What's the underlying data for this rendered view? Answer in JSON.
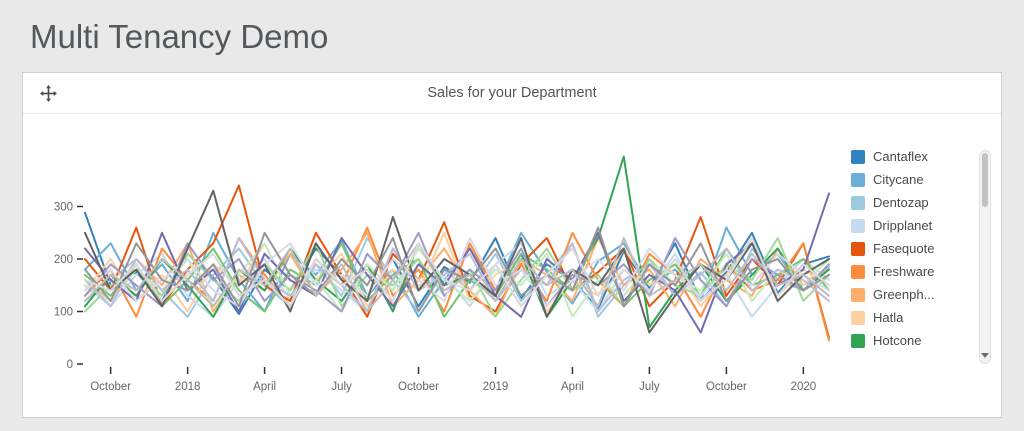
{
  "page": {
    "title": "Multi Tenancy Demo",
    "background": "#e9e9e9"
  },
  "panel": {
    "title": "Sales for your Department",
    "icons": {
      "drag_handle": "move-icon",
      "legend_scroll": "chevron-down-icon"
    }
  },
  "legend": {
    "items": [
      {
        "label": "Cantaflex",
        "color": "#3182bd"
      },
      {
        "label": "Citycane",
        "color": "#6baed6"
      },
      {
        "label": "Dentozap",
        "color": "#9ecae1"
      },
      {
        "label": "Dripplanet",
        "color": "#c6dbef"
      },
      {
        "label": "Fasequote",
        "color": "#e6550d"
      },
      {
        "label": "Freshware",
        "color": "#fd8d3c"
      },
      {
        "label": "Greenph...",
        "color": "#fdae6b"
      },
      {
        "label": "Hatla",
        "color": "#fdd0a2"
      },
      {
        "label": "Hotcone",
        "color": "#31a354"
      }
    ]
  },
  "chart_data": {
    "type": "line",
    "title": "Sales for your Department",
    "xlabel": "",
    "ylabel": "",
    "n_points": 30,
    "ylim": [
      0,
      400
    ],
    "y_ticks": [
      0,
      100,
      200,
      300
    ],
    "x_ticks": [
      {
        "label": "October",
        "index": 1
      },
      {
        "label": "2018",
        "index": 4
      },
      {
        "label": "April",
        "index": 7
      },
      {
        "label": "July",
        "index": 10
      },
      {
        "label": "October",
        "index": 13
      },
      {
        "label": "2019",
        "index": 16
      },
      {
        "label": "April",
        "index": 19
      },
      {
        "label": "July",
        "index": 22
      },
      {
        "label": "October",
        "index": 25
      },
      {
        "label": "2020",
        "index": 28
      }
    ],
    "series": [
      {
        "name": "Cantaflex",
        "color": "#3182bd",
        "values": [
          288,
          150,
          175,
          120,
          210,
          165,
          95,
          180,
          140,
          220,
          170,
          130,
          200,
          110,
          185,
          155,
          240,
          125,
          190,
          160,
          105,
          215,
          145,
          230,
          120,
          175,
          250,
          135,
          190,
          205
        ]
      },
      {
        "name": "Citycane",
        "color": "#6baed6",
        "values": [
          180,
          230,
          140,
          190,
          120,
          250,
          160,
          100,
          210,
          170,
          235,
          130,
          180,
          90,
          160,
          220,
          140,
          250,
          175,
          115,
          195,
          230,
          150,
          180,
          120,
          260,
          170,
          210,
          140,
          190
        ]
      },
      {
        "name": "Dentozap",
        "color": "#9ecae1",
        "values": [
          120,
          160,
          200,
          140,
          90,
          170,
          220,
          150,
          110,
          190,
          130,
          240,
          160,
          100,
          180,
          140,
          210,
          120,
          170,
          230,
          90,
          150,
          200,
          130,
          175,
          110,
          220,
          160,
          140,
          185
        ]
      },
      {
        "name": "Dripplanet",
        "color": "#c6dbef",
        "values": [
          150,
          110,
          170,
          210,
          130,
          90,
          160,
          200,
          120,
          180,
          140,
          100,
          220,
          150,
          170,
          110,
          190,
          230,
          130,
          160,
          100,
          180,
          140,
          210,
          120,
          170,
          90,
          150,
          200,
          160
        ]
      },
      {
        "name": "Fasequote",
        "color": "#e6550d",
        "values": [
          200,
          140,
          260,
          110,
          180,
          230,
          340,
          150,
          120,
          250,
          170,
          90,
          210,
          160,
          270,
          130,
          100,
          190,
          240,
          140,
          175,
          220,
          110,
          160,
          280,
          130,
          200,
          150,
          230,
          50
        ]
      },
      {
        "name": "Freshware",
        "color": "#fd8d3c",
        "values": [
          130,
          180,
          90,
          220,
          160,
          120,
          240,
          170,
          110,
          200,
          150,
          260,
          130,
          180,
          100,
          230,
          140,
          190,
          120,
          250,
          160,
          110,
          210,
          170,
          90,
          190,
          140,
          160,
          230,
          45
        ]
      },
      {
        "name": "Greenph...",
        "color": "#fdae6b",
        "values": [
          160,
          120,
          200,
          150,
          230,
          100,
          170,
          140,
          210,
          130,
          180,
          250,
          110,
          160,
          220,
          140,
          90,
          200,
          170,
          120,
          240,
          150,
          180,
          110,
          200,
          160,
          130,
          220,
          150,
          180
        ]
      },
      {
        "name": "Hatla",
        "color": "#fdd0a2",
        "values": [
          140,
          200,
          120,
          170,
          100,
          190,
          150,
          230,
          130,
          160,
          210,
          110,
          180,
          140,
          250,
          120,
          170,
          200,
          100,
          160,
          130,
          220,
          150,
          190,
          110,
          170,
          240,
          130,
          180,
          150
        ]
      },
      {
        "name": "Hotcone",
        "color": "#31a354",
        "values": [
          110,
          170,
          130,
          200,
          150,
          90,
          180,
          140,
          220,
          160,
          120,
          190,
          100,
          230,
          150,
          170,
          130,
          210,
          90,
          160,
          240,
          395,
          70,
          140,
          190,
          120,
          170,
          220,
          140,
          180
        ]
      },
      {
        "name": "",
        "color": "#74c476",
        "values": [
          170,
          130,
          190,
          110,
          160,
          220,
          140,
          100,
          180,
          150,
          230,
          120,
          170,
          200,
          90,
          160,
          130,
          210,
          180,
          140,
          250,
          110,
          160,
          190,
          130,
          220,
          150,
          170,
          200,
          140
        ]
      },
      {
        "name": "",
        "color": "#a1d99b",
        "values": [
          100,
          150,
          180,
          130,
          210,
          160,
          120,
          190,
          140,
          230,
          110,
          170,
          150,
          200,
          130,
          180,
          90,
          160,
          220,
          140,
          170,
          110,
          200,
          150,
          130,
          190,
          160,
          240,
          120,
          170
        ]
      },
      {
        "name": "",
        "color": "#c7e9c0",
        "values": [
          150,
          120,
          180,
          140,
          200,
          110,
          170,
          230,
          130,
          160,
          100,
          190,
          140,
          220,
          160,
          120,
          180,
          150,
          210,
          90,
          160,
          130,
          190,
          170,
          140,
          210,
          120,
          180,
          150,
          200
        ]
      },
      {
        "name": "",
        "color": "#756bb1",
        "values": [
          220,
          160,
          120,
          250,
          140,
          180,
          100,
          210,
          160,
          130,
          240,
          170,
          110,
          190,
          150,
          220,
          130,
          90,
          200,
          160,
          250,
          120,
          170,
          140,
          60,
          190,
          230,
          150,
          180,
          325
        ]
      },
      {
        "name": "",
        "color": "#9e9ac8",
        "values": [
          130,
          190,
          150,
          110,
          230,
          160,
          200,
          120,
          170,
          140,
          100,
          210,
          160,
          250,
          130,
          180,
          140,
          220,
          110,
          170,
          150,
          190,
          130,
          240,
          160,
          110,
          200,
          170,
          140,
          190
        ]
      },
      {
        "name": "",
        "color": "#bcbddc",
        "values": [
          160,
          110,
          200,
          140,
          180,
          120,
          240,
          160,
          130,
          190,
          150,
          100,
          220,
          140,
          170,
          210,
          120,
          180,
          150,
          230,
          100,
          160,
          190,
          130,
          170,
          220,
          140,
          180,
          160,
          120
        ]
      },
      {
        "name": "",
        "color": "#dadaeb",
        "values": [
          140,
          180,
          120,
          160,
          200,
          140,
          110,
          190,
          230,
          150,
          170,
          130,
          200,
          160,
          120,
          240,
          150,
          180,
          110,
          160,
          200,
          140,
          220,
          170,
          130,
          180,
          150,
          210,
          170,
          140
        ]
      },
      {
        "name": "",
        "color": "#636363",
        "values": [
          250,
          140,
          180,
          110,
          220,
          330,
          150,
          190,
          100,
          230,
          160,
          120,
          280,
          140,
          200,
          170,
          130,
          240,
          90,
          180,
          150,
          220,
          60,
          130,
          190,
          160,
          230,
          120,
          170,
          200
        ]
      },
      {
        "name": "",
        "color": "#969696",
        "values": [
          180,
          120,
          230,
          160,
          140,
          190,
          110,
          250,
          170,
          130,
          200,
          150,
          240,
          100,
          180,
          160,
          220,
          130,
          170,
          140,
          260,
          110,
          190,
          150,
          230,
          120,
          180,
          200,
          140,
          170
        ]
      },
      {
        "name": "",
        "color": "#bdbdbd",
        "values": [
          120,
          170,
          140,
          200,
          160,
          110,
          180,
          150,
          220,
          130,
          190,
          100,
          160,
          230,
          140,
          170,
          120,
          200,
          150,
          180,
          110,
          240,
          130,
          160,
          190,
          140,
          210,
          150,
          170,
          130
        ]
      },
      {
        "name": "",
        "color": "#d9d9d9",
        "values": [
          160,
          140,
          190,
          120,
          170,
          210,
          130,
          160,
          110,
          200,
          150,
          180,
          120,
          230,
          160,
          140,
          190,
          110,
          170,
          220,
          130,
          180,
          140,
          200,
          120,
          160,
          240,
          130,
          190,
          150
        ]
      }
    ]
  }
}
